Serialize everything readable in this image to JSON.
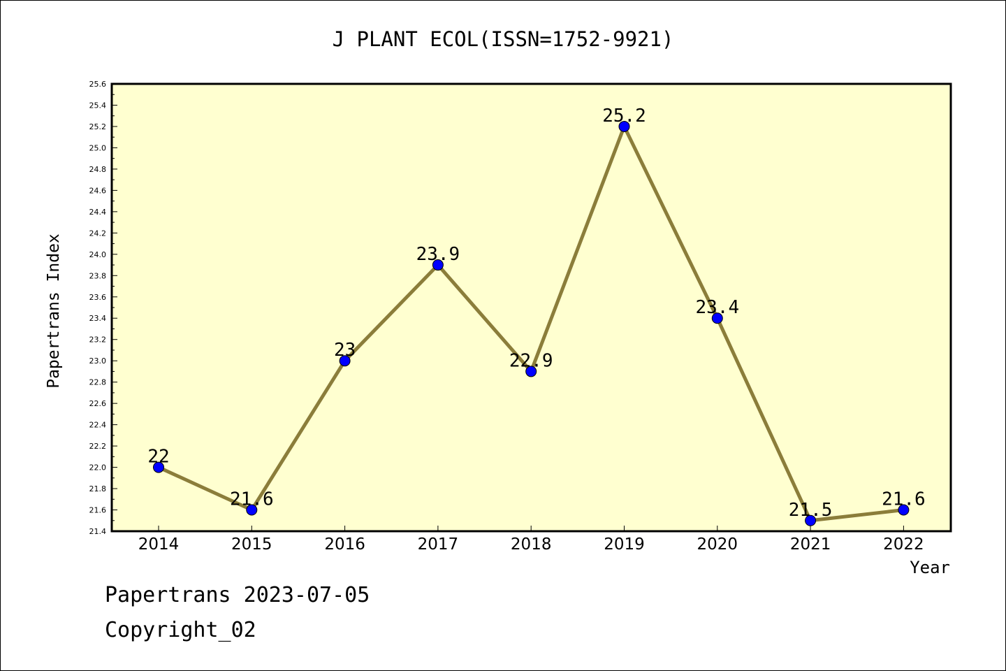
{
  "chart_data": {
    "type": "line",
    "title": "J PLANT ECOL(ISSN=1752-9921)",
    "xlabel": "Year",
    "ylabel": "Papertrans Index",
    "categories": [
      "2014",
      "2015",
      "2016",
      "2017",
      "2018",
      "2019",
      "2020",
      "2021",
      "2022"
    ],
    "series": [
      {
        "values": [
          22.0,
          21.6,
          23.0,
          23.9,
          22.9,
          25.2,
          23.4,
          21.5,
          21.6
        ],
        "labels": [
          "22",
          "21.6",
          "23",
          "23.9",
          "22.9",
          "25.2",
          "23.4",
          "21.5",
          "21.6"
        ]
      }
    ],
    "ylim": [
      21.4,
      25.6
    ],
    "yticks": [
      "21.4",
      "21.6",
      "21.8",
      "22.0",
      "22.2",
      "22.4",
      "22.6",
      "22.8",
      "23.0",
      "23.2",
      "23.4",
      "23.6",
      "23.8",
      "24.0",
      "24.2",
      "24.4",
      "24.6",
      "24.8",
      "25.0",
      "25.2",
      "25.4",
      "25.6"
    ],
    "grid": false,
    "colors": {
      "plot_background": "#ffffd0",
      "line": "#8b7d3a",
      "marker": "#0000ff"
    }
  },
  "footer": {
    "line1": "Papertrans 2023-07-05",
    "line2": "Copyright_02"
  }
}
